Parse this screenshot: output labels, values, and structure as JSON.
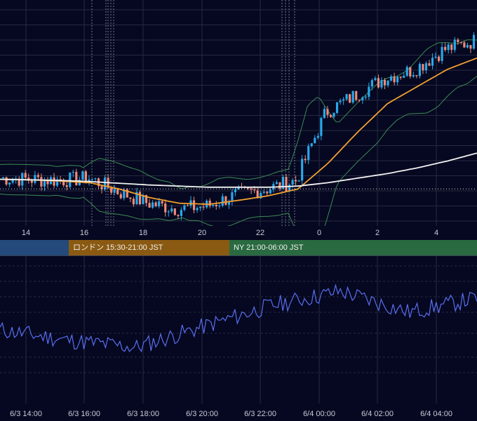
{
  "colors": {
    "background": "#050820",
    "grid": "#262a40",
    "candle_up": "#29a8ea",
    "candle_down": "#ef8a78",
    "ma_fast": "#f0a030",
    "ma_slow": "#f2f2f2",
    "bollinger": "#3c8a55",
    "oscillator": "#5a6ef0",
    "session_tokyo": "#234a7a",
    "session_london": "#8a5a12",
    "session_ny": "#2a6a40"
  },
  "top_axis_labels": [
    "14",
    "16",
    "18",
    "20",
    "22",
    "0",
    "2",
    "4"
  ],
  "sessions": [
    {
      "label": "",
      "color_key": "session_tokyo"
    },
    {
      "label": "ロンドン 15:30-21:00 JST",
      "color_key": "session_london"
    },
    {
      "label": "NY 21:00-06:00 JST",
      "color_key": "session_ny"
    }
  ],
  "bottom_axis_labels": [
    "6/3 14:00",
    "6/3 16:00",
    "6/3 18:00",
    "6/3 20:00",
    "6/3 22:00",
    "6/4 00:00",
    "6/4 02:00",
    "6/4 04:00"
  ],
  "chart_data": [
    {
      "type": "candlestick",
      "x": [
        "6/3 13:00",
        "6/3 14:00",
        "6/3 15:00",
        "6/3 16:00",
        "6/3 17:00",
        "6/3 18:00",
        "6/3 19:00",
        "6/3 20:00",
        "6/3 21:00",
        "6/3 22:00",
        "6/3 23:00",
        "6/4 00:00",
        "6/4 01:00",
        "6/4 02:00",
        "6/4 03:00",
        "6/4 04:00",
        "6/4 05:00"
      ],
      "close": [
        0.64,
        0.62,
        0.6,
        0.64,
        0.4,
        0.2,
        0.1,
        0.15,
        0.35,
        0.45,
        0.6,
        1.8,
        2.1,
        2.4,
        2.55,
        2.9,
        3.05
      ],
      "series": [
        {
          "name": "MA fast",
          "values": [
            0.62,
            0.61,
            0.59,
            0.56,
            0.45,
            0.3,
            0.2,
            0.18,
            0.25,
            0.33,
            0.45,
            0.9,
            1.45,
            1.95,
            2.25,
            2.55,
            2.75
          ]
        },
        {
          "name": "MA slow",
          "values": [
            0.62,
            0.61,
            0.6,
            0.58,
            0.55,
            0.52,
            0.5,
            0.48,
            0.48,
            0.48,
            0.5,
            0.56,
            0.64,
            0.72,
            0.82,
            0.94,
            1.08
          ]
        }
      ],
      "dotted_reference": 0.45
    },
    {
      "type": "line",
      "x": [
        "6/3 14:00",
        "6/3 16:00",
        "6/3 18:00",
        "6/3 20:00",
        "6/3 22:00",
        "6/4 00:00",
        "6/4 02:00",
        "6/4 04:00"
      ],
      "values": [
        48,
        42,
        38,
        50,
        62,
        70,
        58,
        66
      ]
    }
  ]
}
